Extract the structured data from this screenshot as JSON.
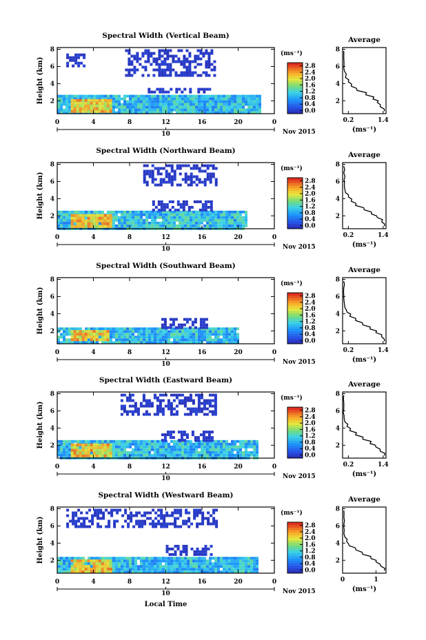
{
  "ui": {
    "units_label": "(ms⁻¹)",
    "date_label": "Nov 2015",
    "xlabel": "Local Time"
  },
  "chart_data": [
    {
      "type": "heatmap",
      "title": "Spectral Width (Vertical Beam)",
      "ylabel": "Height (km)",
      "xticks": [
        "0",
        "4",
        "8",
        "12",
        "16",
        "20",
        "0"
      ],
      "yticks": [
        "2",
        "4",
        "6",
        "8"
      ],
      "day_marker": "10",
      "colorbar_ticks": [
        "0.0",
        "0.4",
        "0.8",
        "1.2",
        "1.6",
        "2.0",
        "2.4",
        "2.8"
      ],
      "colorbar_unit": "(ms⁻¹)",
      "xlim": [
        0,
        24
      ],
      "ylim": [
        0.5,
        8.2
      ],
      "clim": [
        0,
        3.0
      ],
      "layers": [
        {
          "x": [
            0,
            22.4
          ],
          "y": [
            0.6,
            2.7
          ],
          "level": 1.1
        },
        {
          "x": [
            1.5,
            6
          ],
          "y": [
            0.8,
            2.2
          ],
          "level": 2.2
        },
        {
          "x": [
            10,
            17
          ],
          "y": [
            3.0,
            3.5
          ],
          "level": 0.1
        },
        {
          "x": [
            1,
            3
          ],
          "y": [
            6.2,
            7.5
          ],
          "level": 0.1
        },
        {
          "x": [
            7.5,
            17.5
          ],
          "y": [
            5.0,
            8.0
          ],
          "level": 0.1
        }
      ],
      "average_profile": {
        "title": "Average",
        "xlabel": "(ms⁻¹)",
        "xticks": [
          "0.2",
          "1.4"
        ],
        "yticks": [
          "2",
          "4",
          "6",
          "8"
        ],
        "xlim": [
          0,
          1.5
        ],
        "ylim": [
          0.5,
          8.2
        ],
        "height": [
          0.8,
          1.3,
          1.8,
          2.2,
          2.7,
          3.2,
          3.7,
          4.2,
          4.7,
          5.5,
          6.2,
          7.0,
          7.8
        ],
        "width": [
          1.45,
          1.3,
          1.2,
          1.05,
          0.8,
          0.5,
          0.3,
          0.2,
          0.1,
          0.06,
          0.05,
          0.04,
          0.04
        ]
      }
    },
    {
      "type": "heatmap",
      "title": "Spectral Width (Northward Beam)",
      "ylabel": "Height (km)",
      "xticks": [
        "0",
        "4",
        "8",
        "12",
        "16",
        "20",
        "0"
      ],
      "yticks": [
        "2",
        "4",
        "6",
        "8"
      ],
      "day_marker": "10",
      "colorbar_ticks": [
        "0.0",
        "0.4",
        "0.8",
        "1.2",
        "1.6",
        "2.0",
        "2.4",
        "2.8"
      ],
      "colorbar_unit": "(ms⁻¹)",
      "xlim": [
        0,
        24
      ],
      "ylim": [
        0.5,
        8.2
      ],
      "clim": [
        0,
        3.0
      ],
      "layers": [
        {
          "x": [
            0,
            21
          ],
          "y": [
            0.6,
            2.6
          ],
          "level": 1.1
        },
        {
          "x": [
            1.5,
            6
          ],
          "y": [
            0.8,
            2.2
          ],
          "level": 2.2
        },
        {
          "x": [
            10.5,
            17
          ],
          "y": [
            2.8,
            3.8
          ],
          "level": 0.1
        },
        {
          "x": [
            9.5,
            17.5
          ],
          "y": [
            5.5,
            8.0
          ],
          "level": 0.1
        }
      ],
      "average_profile": {
        "title": "Average",
        "xlabel": "(ms⁻¹)",
        "xticks": [
          "0.2",
          "1.4"
        ],
        "yticks": [
          "2",
          "4",
          "6",
          "8"
        ],
        "xlim": [
          0,
          1.5
        ],
        "ylim": [
          0.5,
          8.2
        ],
        "height": [
          0.8,
          1.3,
          1.8,
          2.2,
          2.7,
          3.2,
          3.7,
          4.2,
          4.7,
          5.5,
          6.2,
          7.0,
          7.8
        ],
        "width": [
          1.45,
          1.35,
          1.2,
          1.0,
          0.75,
          0.45,
          0.3,
          0.2,
          0.1,
          0.06,
          0.05,
          0.04,
          0.04
        ]
      }
    },
    {
      "type": "heatmap",
      "title": "Spectral Width (Southward Beam)",
      "ylabel": "Height (km)",
      "xticks": [
        "0",
        "4",
        "8",
        "12",
        "16",
        "20",
        "0"
      ],
      "yticks": [
        "2",
        "4",
        "6",
        "8"
      ],
      "day_marker": "10",
      "colorbar_ticks": [
        "0.0",
        "0.4",
        "0.8",
        "1.2",
        "1.6",
        "2.0",
        "2.4",
        "2.8"
      ],
      "colorbar_unit": "(ms⁻¹)",
      "xlim": [
        0,
        24
      ],
      "ylim": [
        0.5,
        8.2
      ],
      "clim": [
        0,
        3.0
      ],
      "layers": [
        {
          "x": [
            0,
            20
          ],
          "y": [
            0.6,
            2.4
          ],
          "level": 1.1
        },
        {
          "x": [
            1.5,
            5.5
          ],
          "y": [
            0.9,
            2.1
          ],
          "level": 2.2
        },
        {
          "x": [
            11.5,
            16.5
          ],
          "y": [
            2.5,
            3.5
          ],
          "level": 0.1
        }
      ],
      "average_profile": {
        "title": "Average",
        "xlabel": "(ms⁻¹)",
        "xticks": [
          "0.2",
          "1.4"
        ],
        "yticks": [
          "2",
          "4",
          "6",
          "8"
        ],
        "xlim": [
          0,
          1.5
        ],
        "ylim": [
          0.5,
          8.2
        ],
        "height": [
          0.8,
          1.3,
          1.8,
          2.2,
          2.7,
          3.2,
          3.7,
          4.2,
          4.7,
          5.5,
          6.2,
          7.0,
          7.8
        ],
        "width": [
          1.45,
          1.35,
          1.15,
          0.95,
          0.7,
          0.45,
          0.25,
          0.15,
          0.08,
          0.05,
          0.04,
          0.04,
          0.04
        ]
      }
    },
    {
      "type": "heatmap",
      "title": "Spectral Width (Eastward Beam)",
      "ylabel": "Height (km)",
      "xticks": [
        "0",
        "4",
        "8",
        "12",
        "16",
        "20",
        "0"
      ],
      "yticks": [
        "2",
        "4",
        "6",
        "8"
      ],
      "day_marker": "10",
      "colorbar_ticks": [
        "0.0",
        "0.4",
        "0.8",
        "1.2",
        "1.6",
        "2.0",
        "2.4",
        "2.8"
      ],
      "colorbar_unit": "(ms⁻¹)",
      "xlim": [
        0,
        24
      ],
      "ylim": [
        0.5,
        8.2
      ],
      "clim": [
        0,
        3.0
      ],
      "layers": [
        {
          "x": [
            0,
            22
          ],
          "y": [
            0.6,
            2.6
          ],
          "level": 1.1
        },
        {
          "x": [
            1.5,
            6
          ],
          "y": [
            0.8,
            2.2
          ],
          "level": 2.2
        },
        {
          "x": [
            11.5,
            17
          ],
          "y": [
            2.6,
            3.7
          ],
          "level": 0.1
        },
        {
          "x": [
            7,
            17.5
          ],
          "y": [
            5.5,
            8.0
          ],
          "level": 0.1
        }
      ],
      "average_profile": {
        "title": "Average",
        "xlabel": "(ms⁻¹)",
        "xticks": [
          "0.2",
          "1.4"
        ],
        "yticks": [
          "2",
          "4",
          "6",
          "8"
        ],
        "xlim": [
          0,
          1.5
        ],
        "ylim": [
          0.5,
          8.2
        ],
        "height": [
          0.8,
          1.3,
          1.8,
          2.2,
          2.7,
          3.2,
          3.7,
          4.2,
          4.7,
          5.5,
          6.2,
          7.0,
          7.8
        ],
        "width": [
          1.45,
          1.3,
          1.15,
          0.95,
          0.7,
          0.45,
          0.25,
          0.15,
          0.08,
          0.05,
          0.04,
          0.04,
          0.04
        ]
      }
    },
    {
      "type": "heatmap",
      "title": "Spectral Width (Westward Beam)",
      "ylabel": "Height (km)",
      "xticks": [
        "0",
        "4",
        "8",
        "12",
        "16",
        "20",
        "0"
      ],
      "yticks": [
        "2",
        "4",
        "6",
        "8"
      ],
      "day_marker": "10",
      "colorbar_ticks": [
        "0.0",
        "0.4",
        "0.8",
        "1.2",
        "1.6",
        "2.0",
        "2.4",
        "2.8"
      ],
      "colorbar_unit": "(ms⁻¹)",
      "xlim": [
        0,
        24
      ],
      "ylim": [
        0.5,
        8.2
      ],
      "clim": [
        0,
        3.0
      ],
      "layers": [
        {
          "x": [
            0,
            22
          ],
          "y": [
            0.6,
            2.4
          ],
          "level": 1.1
        },
        {
          "x": [
            1.5,
            6
          ],
          "y": [
            0.8,
            2.1
          ],
          "level": 2.2
        },
        {
          "x": [
            12,
            17
          ],
          "y": [
            2.7,
            3.8
          ],
          "level": 0.1
        },
        {
          "x": [
            1,
            17.5
          ],
          "y": [
            6.0,
            8.0
          ],
          "level": 0.1
        }
      ],
      "average_profile": {
        "title": "Average",
        "xlabel": "(ms⁻¹)",
        "xticks": [
          "0",
          "1"
        ],
        "yticks": [
          "2",
          "4",
          "6",
          "8"
        ],
        "xlim": [
          0,
          1.3
        ],
        "ylim": [
          0.5,
          8.2
        ],
        "height": [
          0.8,
          1.3,
          1.8,
          2.2,
          2.7,
          3.2,
          3.7,
          4.2,
          4.7,
          5.5,
          6.2,
          7.0,
          7.8
        ],
        "width": [
          1.25,
          1.15,
          1.0,
          0.85,
          0.6,
          0.4,
          0.2,
          0.12,
          0.07,
          0.05,
          0.04,
          0.04,
          0.04
        ]
      }
    }
  ]
}
